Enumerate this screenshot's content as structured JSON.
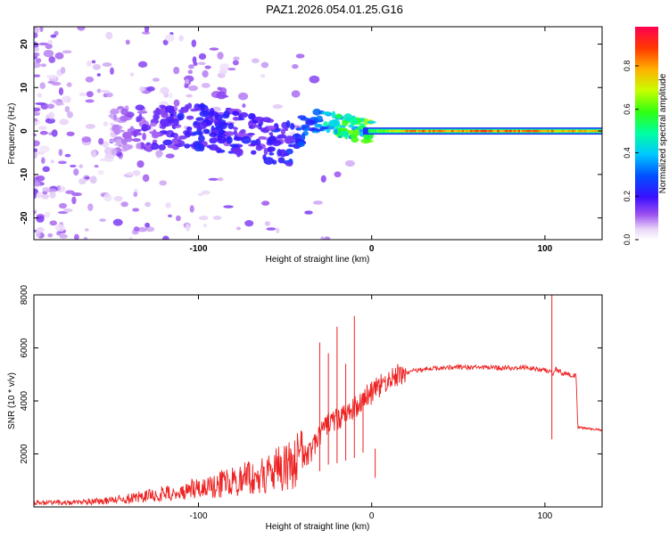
{
  "page": {
    "title": "PAZ1.2026.054.01.25.G16"
  },
  "chart_data": [
    {
      "type": "heatmap",
      "title": "PAZ1.2026.054.01.25.G16",
      "xlabel": "Height of straight line (km)",
      "ylabel": "Frequency (Hz)",
      "xlim": [
        -195,
        133
      ],
      "ylim": [
        -25,
        24
      ],
      "xticks": [
        "-100",
        "0",
        "100"
      ],
      "xtick_values": [
        -100,
        0,
        100
      ],
      "yticks": [
        "-20",
        "-10",
        "0",
        "10",
        "20"
      ],
      "ytick_values": [
        -20,
        -10,
        0,
        10,
        20
      ],
      "colorbar": {
        "label": "Normalized spectral amplitude",
        "range": [
          0.0,
          0.98
        ],
        "ticks": [
          "0.0",
          "0.2",
          "0.4",
          "0.6",
          "0.8"
        ],
        "tick_values": [
          0.0,
          0.2,
          0.4,
          0.6,
          0.8
        ]
      },
      "ridge": {
        "description_points_x": [
          -195,
          -150,
          -130,
          -100,
          -80,
          -60,
          -45,
          -35,
          -25,
          -10,
          0,
          20,
          60,
          100,
          133
        ],
        "center_freq_hz": [
          0,
          0,
          0.5,
          1,
          0,
          -2,
          -3,
          2.5,
          1.5,
          0.5,
          0,
          0,
          0,
          0,
          0
        ],
        "amplitude": [
          0.05,
          0.08,
          0.15,
          0.22,
          0.2,
          0.2,
          0.25,
          0.3,
          0.45,
          0.55,
          0.6,
          0.85,
          0.9,
          0.85,
          0.8
        ]
      }
    },
    {
      "type": "line",
      "xlabel": "Height of straight line (km)",
      "ylabel": "SNR (10 * v/v)",
      "xlim": [
        -195,
        133
      ],
      "ylim": [
        0,
        8000
      ],
      "xticks": [
        "-100",
        "0",
        "100"
      ],
      "xtick_values": [
        -100,
        0,
        100
      ],
      "yticks": [
        "2000",
        "4000",
        "6000",
        "8000"
      ],
      "ytick_values": [
        2000,
        4000,
        6000,
        8000
      ],
      "series": [
        {
          "name": "SNR",
          "color": "#ee2222",
          "x": [
            -195,
            -170,
            -150,
            -130,
            -110,
            -90,
            -70,
            -55,
            -45,
            -35,
            -30,
            -25,
            -20,
            -15,
            -10,
            -5,
            0,
            5,
            10,
            15,
            20,
            25,
            30,
            40,
            50,
            60,
            70,
            80,
            90,
            100,
            104,
            105,
            106,
            110,
            118,
            119,
            125,
            133
          ],
          "values": [
            150,
            170,
            250,
            400,
            600,
            850,
            1100,
            1400,
            1700,
            2100,
            2700,
            3200,
            3300,
            3500,
            3700,
            4100,
            4300,
            4550,
            4800,
            4950,
            5050,
            5150,
            5200,
            5250,
            5280,
            5260,
            5250,
            5240,
            5250,
            5150,
            5100,
            5000,
            5200,
            5050,
            4950,
            3000,
            2950,
            2900
          ]
        }
      ],
      "spikes": {
        "x": [
          -30,
          -25,
          -20,
          -15,
          -10,
          -5,
          2,
          104
        ],
        "values": [
          6200,
          5800,
          6800,
          5400,
          7200,
          4300,
          1100,
          8000
        ]
      }
    }
  ]
}
